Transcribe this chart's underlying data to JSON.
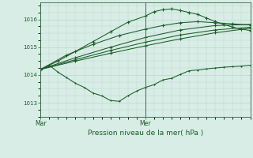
{
  "background_color": "#d8ede6",
  "grid_color": "#b8d8cc",
  "line_color": "#1a5c28",
  "marker_color": "#1a5c28",
  "xlabel": "Pression niveau de la mer( hPa )",
  "ylim": [
    1012.5,
    1016.6
  ],
  "yticks": [
    1013,
    1014,
    1015,
    1016
  ],
  "xlim": [
    0,
    48
  ],
  "xtick_positions": [
    0,
    24
  ],
  "xtick_labels": [
    "Mar",
    "Mer"
  ],
  "figsize": [
    3.2,
    2.0
  ],
  "dpi": 100,
  "series": [
    [
      0,
      1014.2,
      2,
      1014.35,
      4,
      1014.1,
      6,
      1013.9,
      8,
      1013.7,
      10,
      1013.55,
      12,
      1013.35,
      14,
      1013.25,
      16,
      1013.08,
      18,
      1013.05,
      20,
      1013.25,
      22,
      1013.42,
      24,
      1013.55,
      26,
      1013.65,
      28,
      1013.82,
      30,
      1013.88,
      32,
      1014.02,
      34,
      1014.15,
      36,
      1014.18,
      38,
      1014.22,
      40,
      1014.25,
      42,
      1014.28,
      44,
      1014.3,
      46,
      1014.32,
      48,
      1014.35
    ],
    [
      0,
      1014.2,
      8,
      1014.5,
      16,
      1014.78,
      24,
      1015.05,
      32,
      1015.3,
      40,
      1015.52,
      48,
      1015.68
    ],
    [
      0,
      1014.2,
      8,
      1014.62,
      16,
      1015.0,
      24,
      1015.35,
      32,
      1015.62,
      40,
      1015.78,
      48,
      1015.82
    ],
    [
      0,
      1014.2,
      8,
      1014.55,
      16,
      1014.88,
      24,
      1015.18,
      32,
      1015.44,
      40,
      1015.62,
      48,
      1015.72
    ],
    [
      0,
      1014.2,
      4,
      1014.5,
      8,
      1014.85,
      12,
      1015.2,
      16,
      1015.55,
      20,
      1015.9,
      24,
      1016.12,
      26,
      1016.28,
      28,
      1016.35,
      30,
      1016.38,
      32,
      1016.32,
      34,
      1016.25,
      36,
      1016.18,
      38,
      1016.05,
      40,
      1015.92,
      42,
      1015.82,
      44,
      1015.72,
      46,
      1015.65,
      48,
      1015.6
    ],
    [
      0,
      1014.2,
      6,
      1014.72,
      12,
      1015.1,
      18,
      1015.42,
      24,
      1015.65,
      28,
      1015.78,
      32,
      1015.88,
      36,
      1015.92,
      40,
      1015.88,
      44,
      1015.84,
      48,
      1015.8
    ]
  ]
}
